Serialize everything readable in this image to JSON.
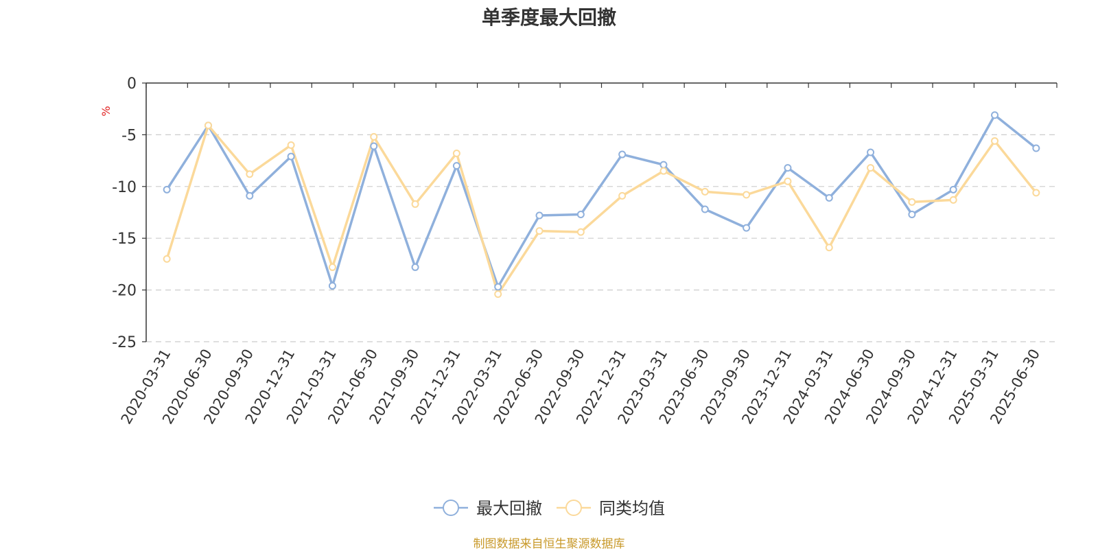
{
  "chart_data": {
    "type": "line",
    "title": "单季度最大回撤",
    "ylabel": "%",
    "ylim": [
      -25,
      0
    ],
    "yticks": [
      0,
      -5,
      -10,
      -15,
      -20,
      -25
    ],
    "grid": true,
    "legend_position": "bottom-center",
    "categories": [
      "2020-03-31",
      "2020-06-30",
      "2020-09-30",
      "2020-12-31",
      "2021-03-31",
      "2021-06-30",
      "2021-09-30",
      "2021-12-31",
      "2022-03-31",
      "2022-06-30",
      "2022-09-30",
      "2022-12-31",
      "2023-03-31",
      "2023-06-30",
      "2023-09-30",
      "2023-12-31",
      "2024-03-31",
      "2024-06-30",
      "2024-09-30",
      "2024-12-31",
      "2025-03-31",
      "2025-06-30"
    ],
    "series": [
      {
        "name": "最大回撤",
        "color": "#8fb0dc",
        "values": [
          -10.3,
          -4.1,
          -10.9,
          -7.1,
          -19.6,
          -6.1,
          -17.8,
          -8.0,
          -19.7,
          -12.8,
          -12.7,
          -6.9,
          -7.9,
          -12.2,
          -14.0,
          -8.2,
          -11.1,
          -6.7,
          -12.7,
          -10.3,
          -3.1,
          -6.3
        ]
      },
      {
        "name": "同类均值",
        "color": "#fbd99a",
        "values": [
          -17.0,
          -4.1,
          -8.8,
          -6.0,
          -17.8,
          -5.2,
          -11.7,
          -6.8,
          -20.4,
          -14.3,
          -14.4,
          -10.9,
          -8.5,
          -10.5,
          -10.8,
          -9.5,
          -15.9,
          -8.2,
          -11.5,
          -11.3,
          -5.6,
          -10.6
        ]
      }
    ]
  },
  "footer": {
    "source": "制图数据来自恒生聚源数据库"
  }
}
